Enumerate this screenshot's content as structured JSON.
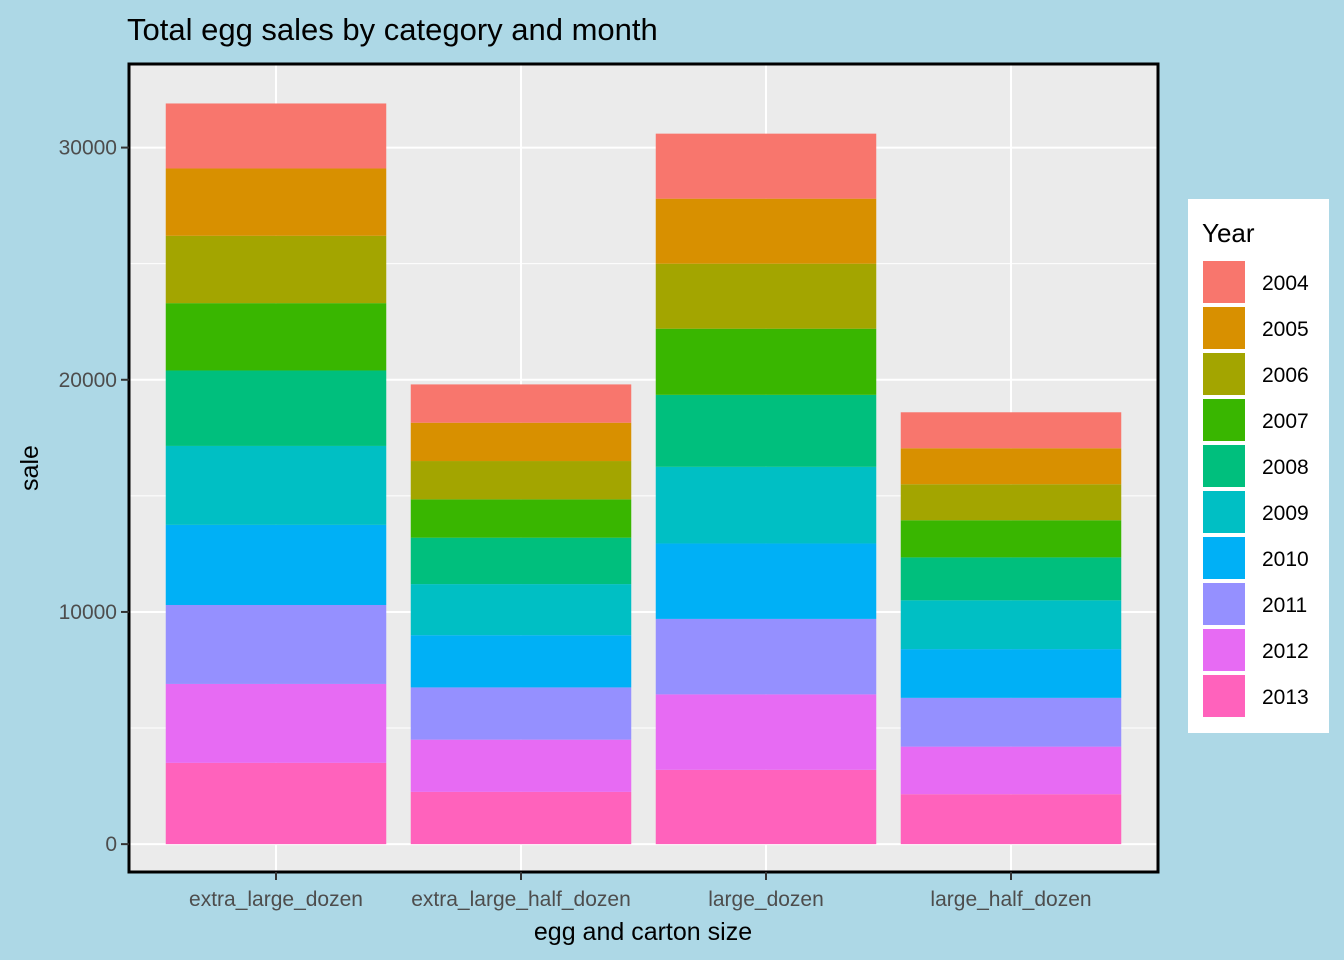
{
  "chart_data": {
    "type": "bar",
    "stacked": true,
    "title": "Total egg sales by category and month",
    "xlabel": "egg and carton size",
    "ylabel": "sale",
    "ylim": [
      -1200,
      33600
    ],
    "yticks": [
      0,
      10000,
      20000,
      30000
    ],
    "categories": [
      "extra_large_dozen",
      "extra_large_half_dozen",
      "large_dozen",
      "large_half_dozen"
    ],
    "legend_title": "Year",
    "legend_position": "right",
    "grid": true,
    "series": [
      {
        "name": "2004",
        "color": "#F8766D",
        "values": [
          2800,
          1650,
          2800,
          1550
        ]
      },
      {
        "name": "2005",
        "color": "#D89000",
        "values": [
          2900,
          1650,
          2800,
          1550
        ]
      },
      {
        "name": "2006",
        "color": "#A3A500",
        "values": [
          2900,
          1650,
          2800,
          1550
        ]
      },
      {
        "name": "2007",
        "color": "#39B600",
        "values": [
          2900,
          1650,
          2850,
          1600
        ]
      },
      {
        "name": "2008",
        "color": "#00BF7D",
        "values": [
          3250,
          2000,
          3100,
          1850
        ]
      },
      {
        "name": "2009",
        "color": "#00BFC4",
        "values": [
          3400,
          2200,
          3300,
          2100
        ]
      },
      {
        "name": "2010",
        "color": "#00B0F6",
        "values": [
          3450,
          2250,
          3250,
          2100
        ]
      },
      {
        "name": "2011",
        "color": "#9590FF",
        "values": [
          3400,
          2250,
          3250,
          2100
        ]
      },
      {
        "name": "2012",
        "color": "#E76BF3",
        "values": [
          3400,
          2250,
          3250,
          2050
        ]
      },
      {
        "name": "2013",
        "color": "#FF62BC",
        "values": [
          3500,
          2250,
          3200,
          2150
        ]
      }
    ]
  }
}
